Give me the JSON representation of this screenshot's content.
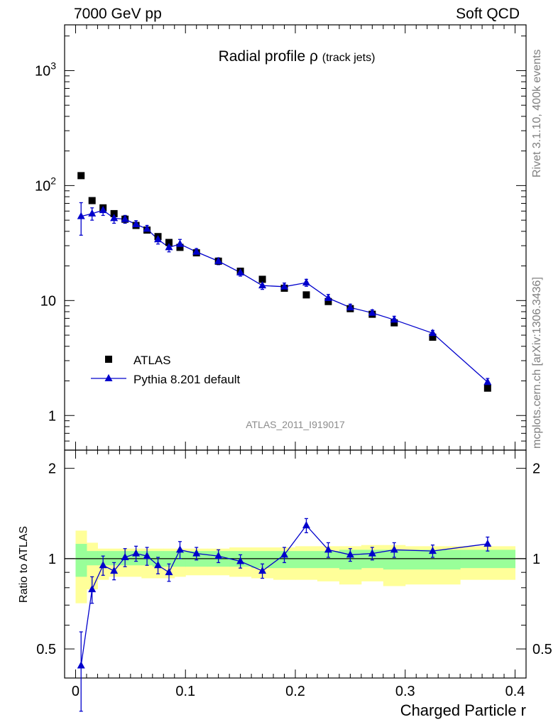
{
  "header": {
    "left": "7000 GeV pp",
    "right": "Soft QCD"
  },
  "side_labels": {
    "rivet": "Rivet 3.1.10,  400k events",
    "mcplots": "mcplots.cern.ch [arXiv:1306.3436]"
  },
  "chart_data": [
    {
      "type": "scatter",
      "title": "Radial profile",
      "title_symbol": "ρ",
      "title_suffix": "(track jets)",
      "watermark": "ATLAS_2011_I919017",
      "xlabel": "Charged Particle r",
      "ylabel": "",
      "xlim": [
        -0.01,
        0.41
      ],
      "ylim": [
        0.5,
        2500
      ],
      "yscale": "log",
      "y_ticks": [
        {
          "value": 1,
          "label": "1"
        },
        {
          "value": 10,
          "label": "10"
        },
        {
          "value": 100,
          "label": "10",
          "sup": "2"
        },
        {
          "value": 1000,
          "label": "10",
          "sup": "3"
        }
      ],
      "legend_position": "center-left",
      "series": [
        {
          "name": "ATLAS",
          "marker": "square",
          "color": "#000000",
          "x": [
            0.005,
            0.015,
            0.025,
            0.035,
            0.045,
            0.055,
            0.065,
            0.075,
            0.085,
            0.095,
            0.11,
            0.13,
            0.15,
            0.17,
            0.19,
            0.21,
            0.23,
            0.25,
            0.27,
            0.29,
            0.325,
            0.375
          ],
          "y": [
            122,
            74,
            64,
            57,
            51,
            45,
            41,
            36,
            32,
            29,
            26,
            22,
            18,
            15.3,
            12.8,
            11.2,
            9.8,
            8.5,
            7.6,
            6.4,
            4.8,
            1.73
          ]
        },
        {
          "name": "Pythia 8.201 default",
          "marker": "triangle",
          "color": "#0000cc",
          "line": true,
          "x": [
            0.005,
            0.015,
            0.025,
            0.035,
            0.045,
            0.055,
            0.065,
            0.075,
            0.085,
            0.095,
            0.11,
            0.13,
            0.15,
            0.17,
            0.19,
            0.21,
            0.23,
            0.25,
            0.27,
            0.29,
            0.325,
            0.375
          ],
          "y": [
            54,
            57,
            61,
            52,
            51,
            46,
            42,
            34,
            29,
            31,
            26.5,
            22,
            17.5,
            13.5,
            13.2,
            14.3,
            10.5,
            8.7,
            7.8,
            6.8,
            5.2,
            1.95
          ],
          "yerr": [
            17,
            7,
            6,
            5,
            4,
            3.5,
            3,
            3,
            2.5,
            3,
            1.8,
            1.5,
            1.2,
            1,
            1,
            1,
            0.8,
            0.6,
            0.5,
            0.5,
            0.3,
            0.15
          ]
        }
      ]
    },
    {
      "type": "scatter",
      "ylabel": "Ratio to ATLAS",
      "xlabel": "Charged Particle r",
      "xlim": [
        -0.01,
        0.41
      ],
      "ylim": [
        0.4,
        2.3
      ],
      "yscale": "log",
      "y_ticks": [
        {
          "value": 0.5,
          "label": "0.5"
        },
        {
          "value": 1,
          "label": "1"
        },
        {
          "value": 2,
          "label": "2"
        }
      ],
      "x_ticks": [
        {
          "value": 0,
          "label": "0"
        },
        {
          "value": 0.1,
          "label": "0.1"
        },
        {
          "value": 0.2,
          "label": "0.2"
        },
        {
          "value": 0.3,
          "label": "0.3"
        },
        {
          "value": 0.4,
          "label": "0.4"
        }
      ],
      "reference_line": 1,
      "bands": {
        "bins": [
          [
            0,
            0.01
          ],
          [
            0.01,
            0.02
          ],
          [
            0.02,
            0.03
          ],
          [
            0.03,
            0.04
          ],
          [
            0.04,
            0.05
          ],
          [
            0.05,
            0.06
          ],
          [
            0.06,
            0.07
          ],
          [
            0.07,
            0.08
          ],
          [
            0.08,
            0.09
          ],
          [
            0.09,
            0.1
          ],
          [
            0.1,
            0.12
          ],
          [
            0.12,
            0.14
          ],
          [
            0.14,
            0.16
          ],
          [
            0.16,
            0.18
          ],
          [
            0.18,
            0.2
          ],
          [
            0.2,
            0.22
          ],
          [
            0.22,
            0.24
          ],
          [
            0.24,
            0.26
          ],
          [
            0.26,
            0.28
          ],
          [
            0.28,
            0.3
          ],
          [
            0.3,
            0.35
          ],
          [
            0.35,
            0.4
          ]
        ],
        "stat_syst": {
          "color": "#ffff99",
          "low": [
            0.71,
            0.79,
            0.85,
            0.87,
            0.87,
            0.87,
            0.86,
            0.86,
            0.86,
            0.87,
            0.88,
            0.88,
            0.87,
            0.86,
            0.85,
            0.85,
            0.84,
            0.82,
            0.84,
            0.81,
            0.82,
            0.85
          ],
          "high": [
            1.24,
            1.13,
            1.08,
            1.08,
            1.08,
            1.08,
            1.08,
            1.08,
            1.08,
            1.08,
            1.08,
            1.08,
            1.09,
            1.09,
            1.09,
            1.1,
            1.1,
            1.1,
            1.11,
            1.11,
            1.1,
            1.1
          ]
        },
        "stat": {
          "color": "#99ff99",
          "low": [
            0.87,
            0.95,
            0.95,
            0.95,
            0.95,
            0.95,
            0.95,
            0.94,
            0.94,
            0.94,
            0.94,
            0.94,
            0.94,
            0.93,
            0.93,
            0.93,
            0.93,
            0.92,
            0.93,
            0.92,
            0.92,
            0.93
          ],
          "high": [
            1.12,
            1.06,
            1.06,
            1.06,
            1.06,
            1.06,
            1.06,
            1.06,
            1.06,
            1.06,
            1.06,
            1.06,
            1.06,
            1.06,
            1.06,
            1.06,
            1.06,
            1.07,
            1.07,
            1.07,
            1.07,
            1.07
          ]
        }
      },
      "series": [
        {
          "name": "Pythia 8.201 default",
          "marker": "triangle",
          "color": "#0000cc",
          "line": true,
          "x": [
            0.005,
            0.015,
            0.025,
            0.035,
            0.045,
            0.055,
            0.065,
            0.075,
            0.085,
            0.095,
            0.11,
            0.13,
            0.15,
            0.17,
            0.19,
            0.21,
            0.23,
            0.25,
            0.27,
            0.29,
            0.325,
            0.375
          ],
          "y": [
            0.44,
            0.79,
            0.95,
            0.91,
            1.01,
            1.04,
            1.02,
            0.95,
            0.9,
            1.07,
            1.04,
            1.02,
            0.98,
            0.91,
            1.03,
            1.29,
            1.07,
            1.03,
            1.04,
            1.07,
            1.06,
            1.12
          ],
          "yerr": [
            0.13,
            0.08,
            0.07,
            0.06,
            0.07,
            0.06,
            0.07,
            0.06,
            0.06,
            0.07,
            0.05,
            0.05,
            0.05,
            0.05,
            0.06,
            0.07,
            0.06,
            0.05,
            0.05,
            0.06,
            0.05,
            0.06
          ]
        }
      ]
    }
  ]
}
